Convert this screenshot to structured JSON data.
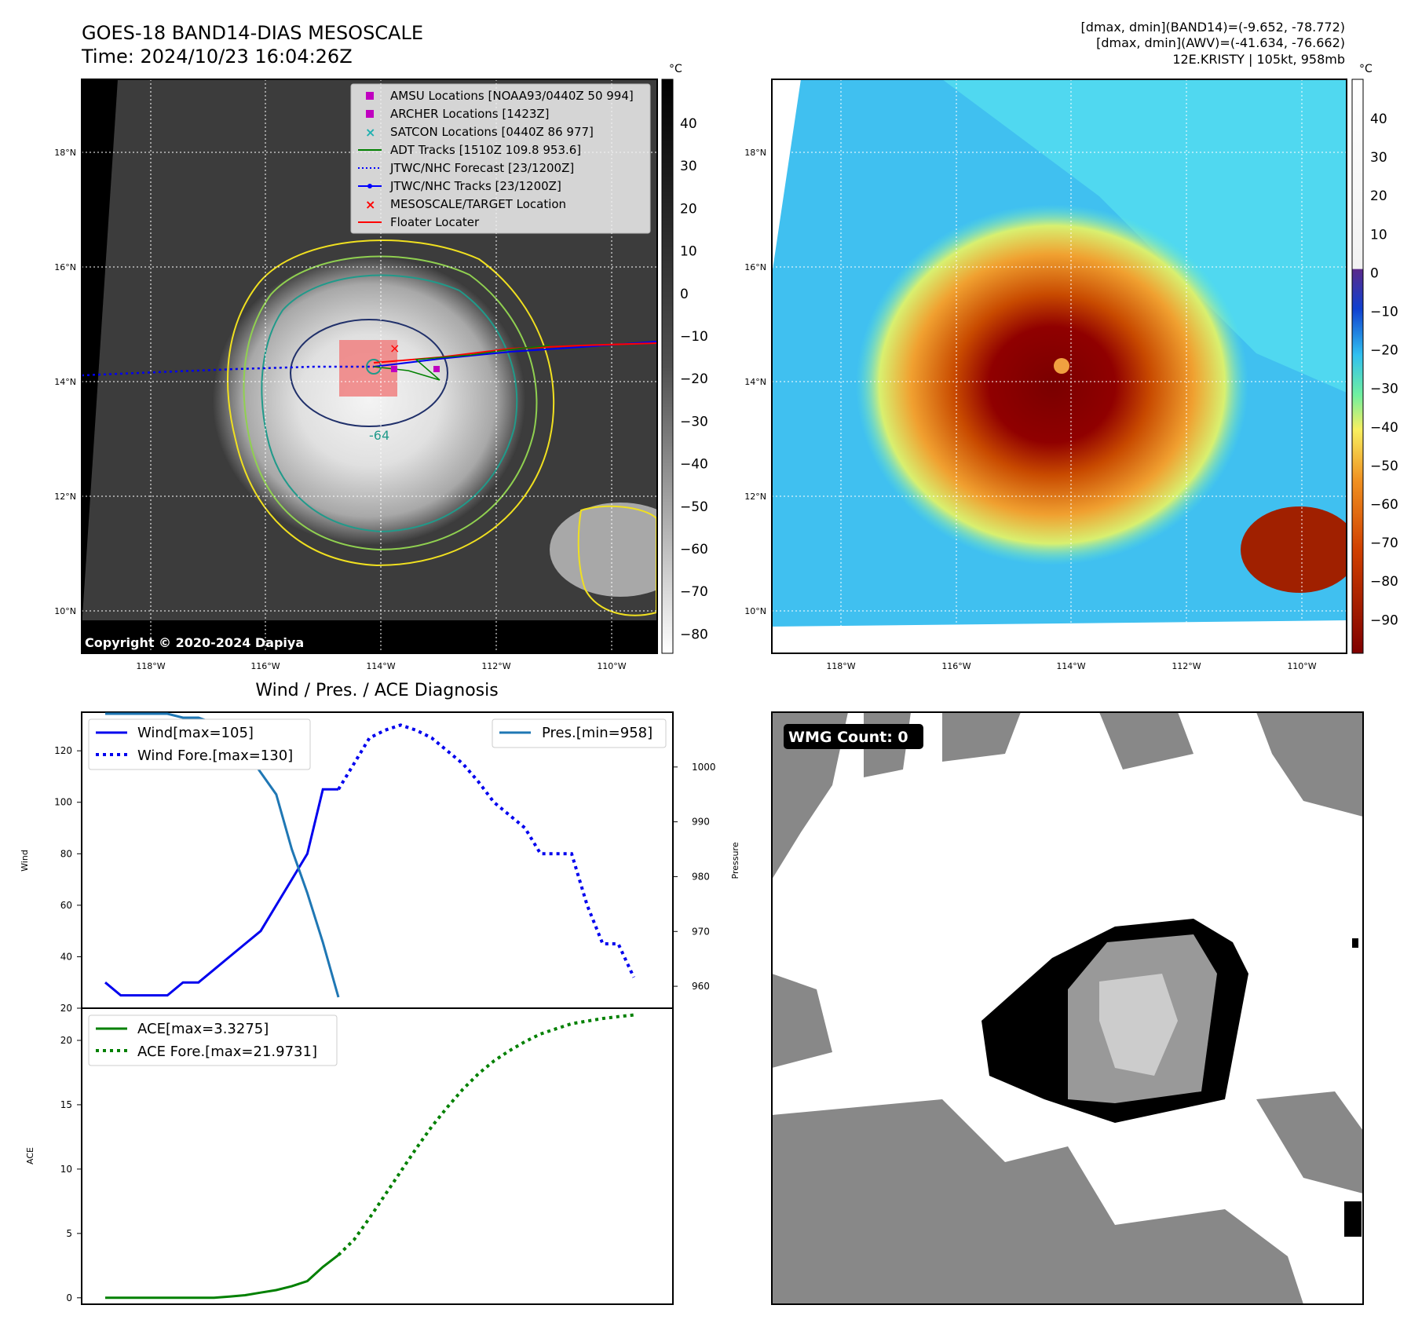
{
  "header": {
    "title": "GOES-18 BAND14-DIAS MESOSCALE",
    "time": "Time: 2024/10/23 16:04:26Z",
    "dmax_band14": "[dmax, dmin](BAND14)=(-9.652, -78.772)",
    "dmax_awv": "[dmax, dmin](AWV)=(-41.634, -76.662)",
    "storm": "12E.KRISTY | 105kt, 958mb"
  },
  "copyright": "Copyright © 2020-2024 Dapiya",
  "map_axes": {
    "lon_ticks": [
      "118°W",
      "116°W",
      "114°W",
      "112°W",
      "110°W"
    ],
    "lat_ticks": [
      "18°N",
      "16°N",
      "14°N",
      "12°N",
      "10°N"
    ]
  },
  "legend": [
    {
      "label": "AMSU Locations [NOAA93/0440Z 50 994]",
      "color": "#c000c0",
      "marker": "square"
    },
    {
      "label": "ARCHER Locations [1423Z]",
      "color": "#c000c0",
      "marker": "square"
    },
    {
      "label": "SATCON Locations [0440Z 86 977]",
      "color": "#20b0b0",
      "marker": "x"
    },
    {
      "label": "ADT Tracks [1510Z 109.8 953.6]",
      "color": "#008000",
      "marker": "line"
    },
    {
      "label": "JTWC/NHC Forecast [23/1200Z]",
      "color": "#0000ff",
      "marker": "dotted"
    },
    {
      "label": "JTWC/NHC Tracks [23/1200Z]",
      "color": "#0000ff",
      "marker": "line-dot"
    },
    {
      "label": "MESOSCALE/TARGET Location",
      "color": "#ff0000",
      "marker": "x"
    },
    {
      "label": "Floater Locater",
      "color": "#ff0000",
      "marker": "line"
    }
  ],
  "contour_label": "-64",
  "colorbar_left": {
    "unit": "°C",
    "ticks": [
      "40",
      "30",
      "20",
      "10",
      "0",
      "−10",
      "−20",
      "−30",
      "−40",
      "−50",
      "−60",
      "−70",
      "−80"
    ]
  },
  "colorbar_right": {
    "unit": "°C",
    "ticks": [
      "40",
      "30",
      "20",
      "10",
      "0",
      "−10",
      "−20",
      "−30",
      "−40",
      "−50",
      "−60",
      "−70",
      "−80",
      "−90"
    ]
  },
  "colors": {
    "contour_yellow": "#f0e020",
    "contour_lightgreen": "#90d050",
    "contour_teal": "#209a8a",
    "contour_navy": "#20306a",
    "eye_box": "#f08080"
  },
  "chart_data": [
    {
      "type": "line",
      "title": "Wind / Pres. / ACE Diagnosis",
      "xlabel": "",
      "ylabel": "Wind",
      "y2label": "Pressure",
      "ylim": [
        20,
        135
      ],
      "y2lim": [
        956,
        1010
      ],
      "yticks": [
        "20",
        "40",
        "60",
        "80",
        "100",
        "120"
      ],
      "y2ticks": [
        "960",
        "970",
        "980",
        "990",
        "1000"
      ],
      "series": [
        {
          "name": "Wind[max=105]",
          "axis": "left",
          "style": "solid",
          "color": "#0000ee",
          "x": [
            0,
            1,
            2,
            3,
            4,
            5,
            6,
            7,
            8,
            9,
            10,
            11,
            12,
            13,
            14,
            15
          ],
          "values": [
            30,
            25,
            25,
            25,
            25,
            30,
            30,
            35,
            40,
            45,
            50,
            60,
            70,
            80,
            105,
            105
          ]
        },
        {
          "name": "Wind Fore.[max=130]",
          "axis": "left",
          "style": "dotted",
          "color": "#0000ee",
          "x": [
            15,
            16,
            17,
            18,
            19,
            20,
            21,
            22,
            23,
            24,
            25,
            26,
            27,
            28,
            29,
            30,
            31,
            32,
            33,
            34
          ],
          "values": [
            105,
            115,
            125,
            128,
            130,
            128,
            125,
            120,
            115,
            108,
            100,
            95,
            90,
            80,
            80,
            80,
            60,
            45,
            45,
            32
          ]
        },
        {
          "name": "Pres.[min=958]",
          "axis": "right",
          "style": "solid",
          "color": "#1f77b4",
          "x": [
            0,
            1,
            2,
            3,
            4,
            5,
            6,
            7,
            8,
            9,
            10,
            11,
            12,
            13,
            14,
            15
          ],
          "values": [
            1010,
            1010,
            1010,
            1010,
            1010,
            1009,
            1009,
            1008,
            1006,
            1003,
            999,
            995,
            985,
            977,
            968,
            958
          ]
        }
      ]
    },
    {
      "type": "line",
      "ylabel": "ACE",
      "ylim": [
        -0.5,
        22.5
      ],
      "yticks": [
        "0",
        "5",
        "10",
        "15",
        "20"
      ],
      "series": [
        {
          "name": "ACE[max=3.3275]",
          "style": "solid",
          "color": "#008000",
          "x": [
            0,
            1,
            2,
            3,
            4,
            5,
            6,
            7,
            8,
            9,
            10,
            11,
            12,
            13,
            14,
            15
          ],
          "values": [
            0,
            0,
            0,
            0,
            0,
            0,
            0,
            0,
            0.1,
            0.2,
            0.4,
            0.6,
            0.9,
            1.3,
            2.4,
            3.3275
          ]
        },
        {
          "name": "ACE Fore.[max=21.9731]",
          "style": "dotted",
          "color": "#008000",
          "x": [
            15,
            16,
            17,
            18,
            19,
            20,
            21,
            22,
            23,
            24,
            25,
            26,
            27,
            28,
            29,
            30,
            31,
            32,
            33,
            34
          ],
          "values": [
            3.3275,
            4.5,
            6.2,
            8.0,
            9.8,
            11.6,
            13.3,
            14.8,
            16.2,
            17.4,
            18.4,
            19.2,
            19.9,
            20.5,
            20.9,
            21.3,
            21.5,
            21.7,
            21.85,
            21.9731
          ]
        }
      ]
    }
  ],
  "wmg": {
    "label": "WMG Count: 0"
  }
}
